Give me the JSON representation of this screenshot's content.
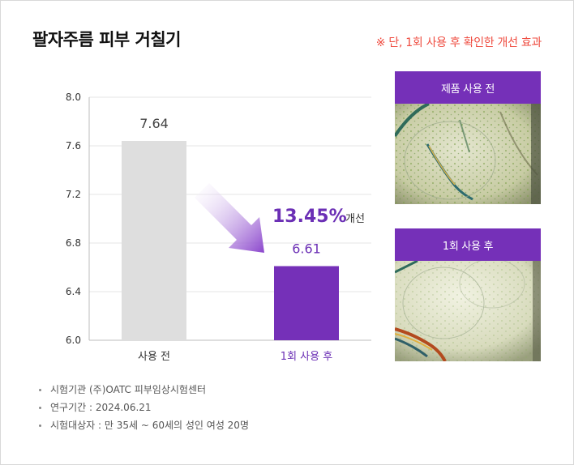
{
  "title": "팔자주름 피부 거칠기",
  "note": "※ 단, 1회 사용 후 확인한 개선 효과",
  "chart_data": {
    "type": "bar",
    "categories": [
      "사용 전",
      "1회 사용 후"
    ],
    "values": [
      7.64,
      6.61
    ],
    "value_labels": [
      "7.64",
      "6.61"
    ],
    "ylim": [
      6.0,
      8.0
    ],
    "yticks": [
      "8.0",
      "7.6",
      "7.2",
      "6.8",
      "6.4",
      "6.0"
    ],
    "grid": true,
    "colors": [
      "#dedede",
      "#7530b8"
    ],
    "improvement": {
      "percent": "13.45%",
      "label": "개선"
    }
  },
  "photos": [
    {
      "label": "제품 사용 전"
    },
    {
      "label": "1회 사용 후"
    }
  ],
  "notes": [
    "시험기관 (주)OATC 피부임상시험센터",
    "연구기간 : 2024.06.21",
    "시험대상자 : 만 35세 ~ 60세의 성인 여성 20명"
  ]
}
